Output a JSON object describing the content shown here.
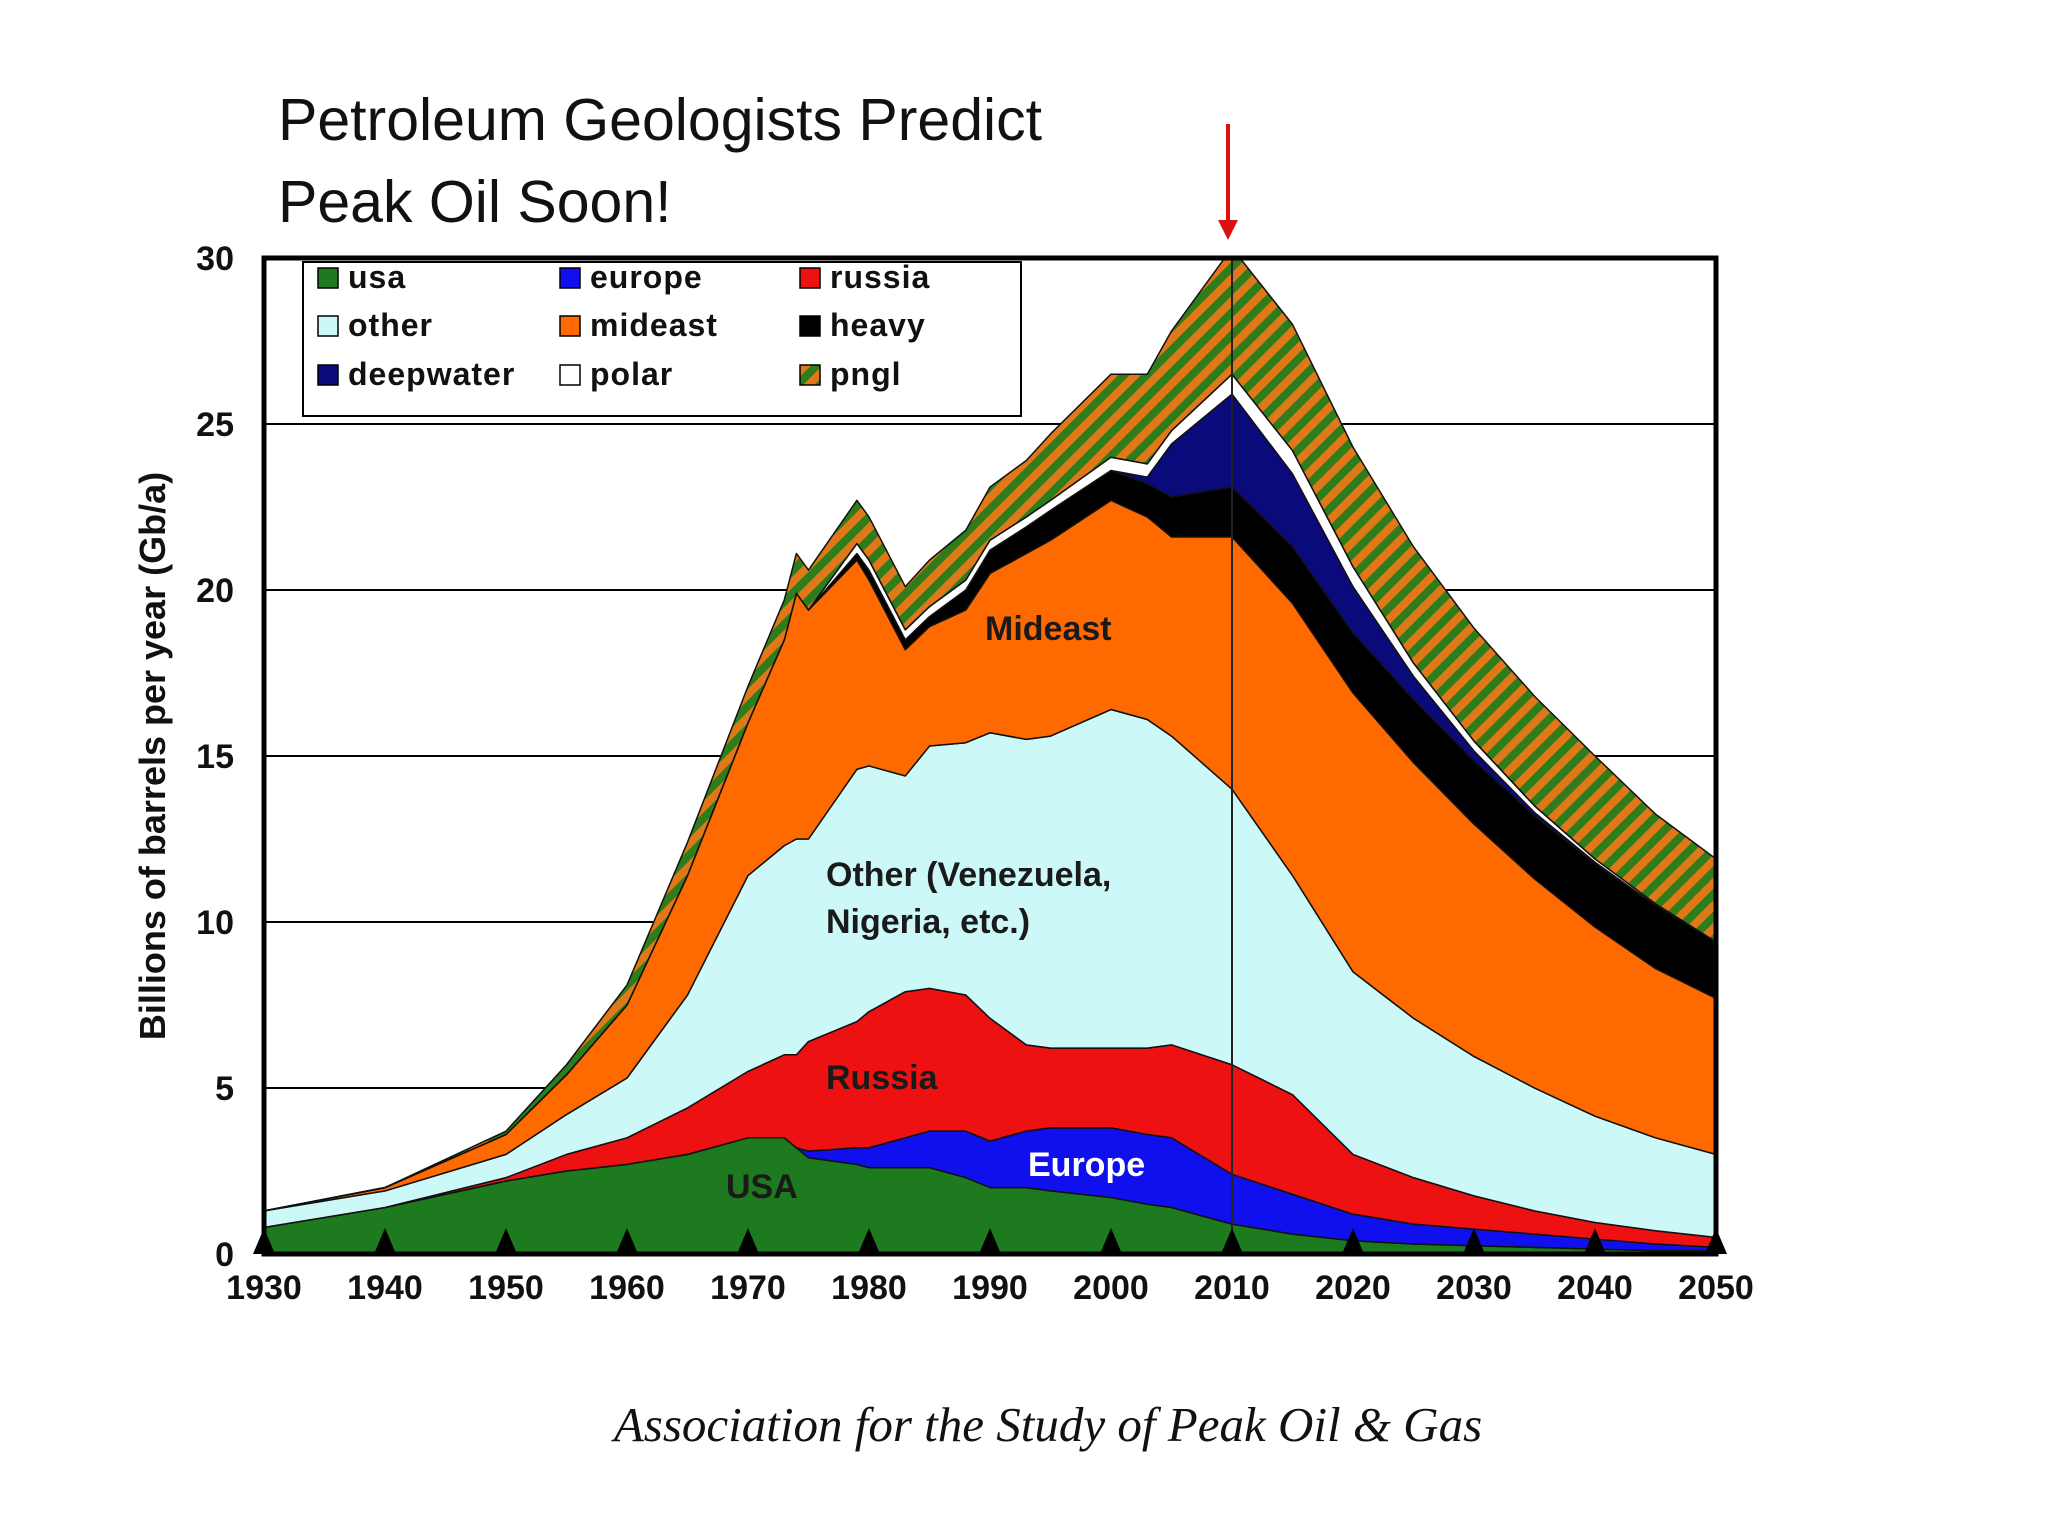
{
  "colors": {
    "usa": "#1e7a1e",
    "europe": "#1010ee",
    "russia": "#ee1111",
    "other": "#ccf8f8",
    "mideast": "#ff6a00",
    "heavy": "#000000",
    "deepwater": "#0a0a7a",
    "polar": "#ffffff",
    "pngl_a": "#2e7d1a",
    "pngl_b": "#e0781a",
    "arrow": "#dd1111"
  },
  "chart_data": {
    "type": "area",
    "title": "Petroleum Geologists Predict Peak Oil Soon!",
    "title_lines": [
      "Petroleum Geologists Predict",
      "Peak Oil Soon!"
    ],
    "ylabel": "Billions of barrels per year (Gb/a)",
    "xlabel": "",
    "xlim": [
      1930,
      2050
    ],
    "ylim": [
      0,
      30
    ],
    "x_ticks": [
      "1930",
      "1940",
      "1950",
      "1960",
      "1970",
      "1980",
      "1990",
      "2000",
      "2010",
      "2020",
      "2030",
      "2040",
      "2050"
    ],
    "y_ticks": [
      "0",
      "5",
      "10",
      "15",
      "20",
      "25",
      "30"
    ],
    "grid": "horizontal",
    "legend_position": "top-left",
    "stacked": true,
    "x": [
      1930,
      1940,
      1950,
      1955,
      1960,
      1965,
      1970,
      1973,
      1974,
      1975,
      1979,
      1980,
      1983,
      1985,
      1988,
      1990,
      1993,
      1995,
      2000,
      2003,
      2005,
      2010,
      2015,
      2020,
      2025,
      2030,
      2035,
      2040,
      2045,
      2050
    ],
    "series": [
      {
        "name": "usa",
        "values": [
          0.8,
          1.4,
          2.2,
          2.5,
          2.7,
          3.0,
          3.5,
          3.5,
          3.2,
          2.9,
          2.7,
          2.6,
          2.6,
          2.6,
          2.3,
          2.0,
          2.0,
          1.9,
          1.7,
          1.5,
          1.4,
          0.9,
          0.6,
          0.4,
          0.3,
          0.25,
          0.2,
          0.15,
          0.1,
          0.1
        ]
      },
      {
        "name": "europe",
        "values": [
          0,
          0,
          0,
          0,
          0,
          0,
          0,
          0,
          0,
          0.2,
          0.5,
          0.6,
          0.9,
          1.1,
          1.4,
          1.4,
          1.7,
          1.9,
          2.1,
          2.1,
          2.1,
          1.5,
          1.2,
          0.8,
          0.6,
          0.5,
          0.4,
          0.3,
          0.2,
          0.1
        ]
      },
      {
        "name": "russia",
        "values": [
          0,
          0,
          0.1,
          0.5,
          0.8,
          1.4,
          2.0,
          2.5,
          2.8,
          3.3,
          3.8,
          4.1,
          4.4,
          4.3,
          4.1,
          3.7,
          2.6,
          2.4,
          2.4,
          2.6,
          2.8,
          3.3,
          3.0,
          1.8,
          1.4,
          1.0,
          0.7,
          0.5,
          0.4,
          0.3
        ]
      },
      {
        "name": "other",
        "values": [
          0.5,
          0.5,
          0.7,
          1.2,
          1.8,
          3.4,
          5.9,
          6.3,
          6.5,
          6.1,
          7.6,
          7.4,
          6.5,
          7.3,
          7.6,
          8.6,
          9.2,
          9.4,
          10.2,
          9.9,
          9.3,
          8.3,
          6.6,
          5.5,
          4.8,
          4.2,
          3.7,
          3.2,
          2.8,
          2.5
        ]
      },
      {
        "name": "mideast",
        "values": [
          0,
          0.1,
          0.6,
          1.2,
          2.2,
          3.6,
          4.6,
          6.2,
          7.4,
          6.9,
          6.3,
          5.6,
          3.8,
          3.6,
          4.0,
          4.8,
          5.6,
          5.9,
          6.3,
          6.1,
          6.0,
          7.6,
          8.2,
          8.4,
          7.7,
          7.0,
          6.3,
          5.7,
          5.1,
          4.7
        ]
      },
      {
        "name": "heavy",
        "values": [
          0,
          0,
          0,
          0,
          0,
          0,
          0,
          0,
          0,
          0,
          0.2,
          0.3,
          0.3,
          0.3,
          0.6,
          0.7,
          0.8,
          0.9,
          0.9,
          1.0,
          1.2,
          1.5,
          1.7,
          1.8,
          1.9,
          1.9,
          1.9,
          1.9,
          1.9,
          1.7
        ]
      },
      {
        "name": "deepwater",
        "values": [
          0,
          0,
          0,
          0,
          0,
          0,
          0,
          0,
          0,
          0,
          0,
          0,
          0,
          0,
          0,
          0,
          0,
          0,
          0,
          0.2,
          1.6,
          2.8,
          2.2,
          1.4,
          0.7,
          0.3,
          0.1,
          0.05,
          0,
          0
        ]
      },
      {
        "name": "polar",
        "values": [
          0,
          0,
          0,
          0,
          0,
          0,
          0,
          0,
          0,
          0,
          0.3,
          0.3,
          0.3,
          0.3,
          0.3,
          0.3,
          0.3,
          0.3,
          0.4,
          0.4,
          0.4,
          0.6,
          0.7,
          0.6,
          0.4,
          0.3,
          0.2,
          0.1,
          0.05,
          0
        ]
      },
      {
        "name": "pngl",
        "values": [
          0,
          0,
          0.1,
          0.3,
          0.6,
          1.0,
          1.1,
          1.2,
          1.2,
          1.2,
          1.3,
          1.3,
          1.3,
          1.4,
          1.5,
          1.6,
          1.7,
          2.0,
          2.5,
          2.7,
          3.0,
          3.8,
          3.8,
          3.6,
          3.5,
          3.4,
          3.3,
          3.1,
          2.7,
          2.5
        ]
      }
    ],
    "legend": [
      [
        "usa",
        "europe",
        "russia"
      ],
      [
        "other",
        "mideast",
        "heavy"
      ],
      [
        "deepwater",
        "polar",
        "pngl"
      ]
    ],
    "annotations": {
      "mideast": "Mideast",
      "other_line1": "Other (Venezuela,",
      "other_line2": "Nigeria, etc.)",
      "russia": "Russia",
      "europe": "Europe",
      "usa": "USA"
    },
    "peak_marker_year": 2010,
    "bottom_marker_years": [
      1930,
      1940,
      1950,
      1960,
      1970,
      1980,
      1990,
      2000,
      2010,
      2020,
      2030,
      2040,
      2050
    ],
    "source": "Association for the Study of Peak Oil & Gas"
  }
}
